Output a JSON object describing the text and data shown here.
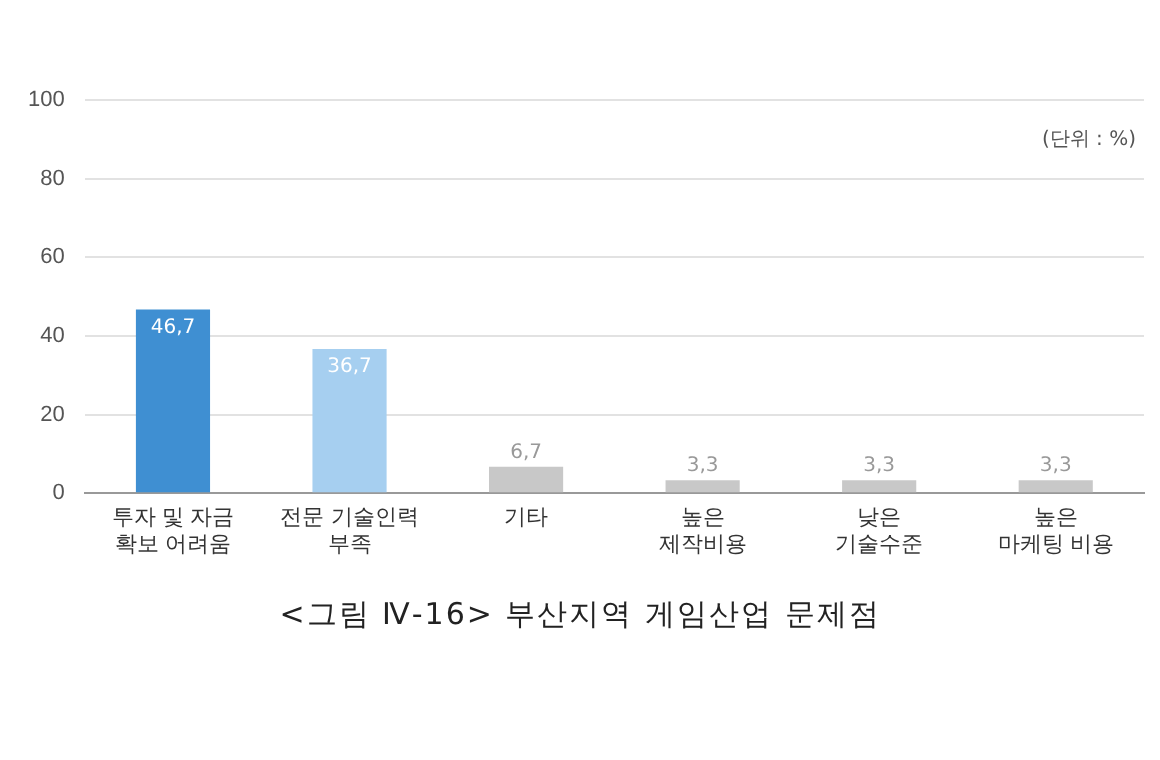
{
  "chart_data": {
    "type": "bar",
    "title": "<그림 Ⅳ-16> 부산지역 게임산업 문제점",
    "categories": [
      "투자 및 자금\n확보 어려움",
      "전문 기술인력\n부족",
      "기타",
      "높은\n제작비용",
      "낮은\n기술수준",
      "높은\n마케팅 비용"
    ],
    "values": [
      46.7,
      36.7,
      6.7,
      3.3,
      3.3,
      3.3
    ],
    "value_labels": [
      "46,7",
      "36,7",
      "6,7",
      "3,3",
      "3,3",
      "3,3"
    ],
    "colors": [
      "#3f8fd2",
      "#a6cff0",
      "#c8c8c8",
      "#c8c8c8",
      "#c8c8c8",
      "#c8c8c8"
    ],
    "ylim": [
      0,
      100
    ],
    "yticks": [
      0,
      20,
      40,
      60,
      80,
      100
    ],
    "grid": "y",
    "legend": false,
    "annotations": [
      "(단위 : %)"
    ]
  }
}
